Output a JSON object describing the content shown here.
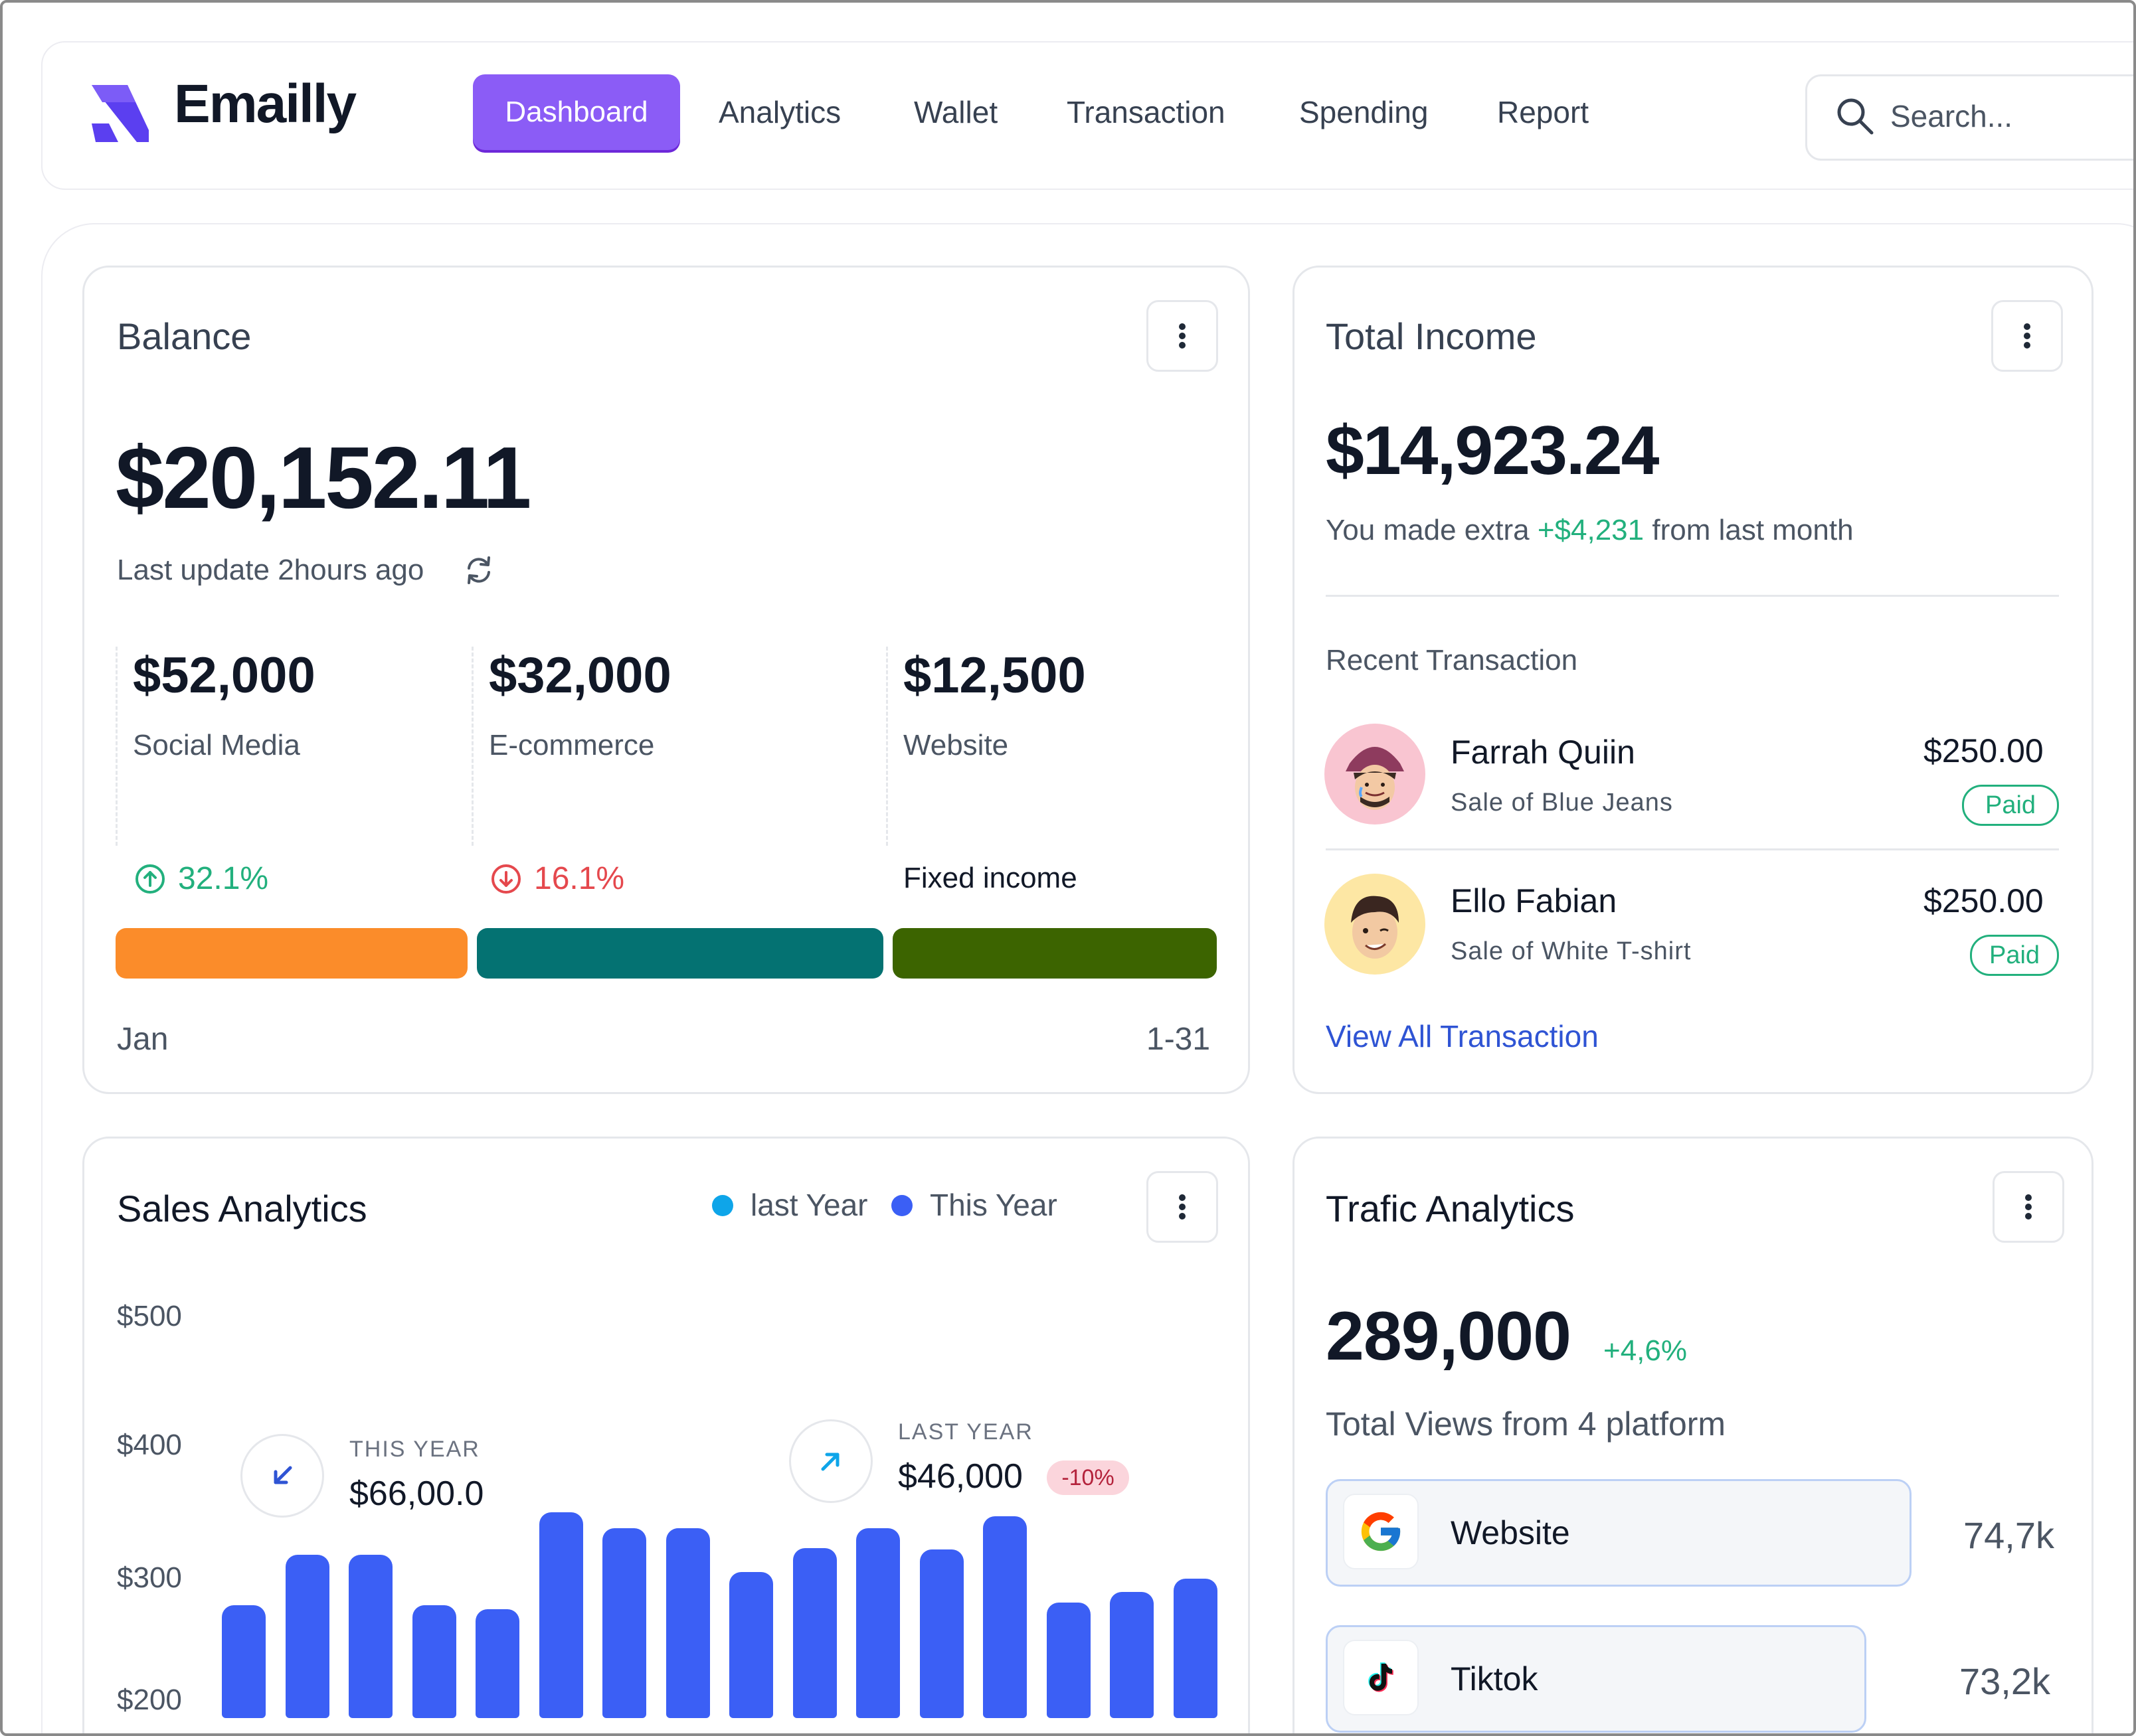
{
  "app": {
    "name": "Emailly"
  },
  "nav": {
    "items": [
      {
        "label": "Dashboard",
        "active": true
      },
      {
        "label": "Analytics"
      },
      {
        "label": "Wallet"
      },
      {
        "label": "Transaction"
      },
      {
        "label": "Spending"
      },
      {
        "label": "Report"
      }
    ],
    "search_placeholder": "Search..."
  },
  "balance": {
    "title": "Balance",
    "amount": "$20,152.11",
    "last_update": "Last update 2hours ago",
    "segments": [
      {
        "amount": "$52,000",
        "label": "Social Media",
        "change": "32.1%",
        "direction": "up",
        "color": "#fb8c2a"
      },
      {
        "amount": "$32,000",
        "label": "E-commerce",
        "change": "16.1%",
        "direction": "down",
        "color": "#047272"
      },
      {
        "amount": "$12,500",
        "label": "Website",
        "note": "Fixed income",
        "color": "#3c6400"
      }
    ],
    "month": "Jan",
    "range": "1-31"
  },
  "income": {
    "title": "Total Income",
    "amount": "$14,923.24",
    "extra_prefix": "You made extra",
    "extra_value": "+$4,231",
    "extra_suffix": "from last month",
    "recent_label": "Recent Transaction",
    "transactions": [
      {
        "name": "Farrah Quiin",
        "desc": "Sale of Blue Jeans",
        "amount": "$250.00",
        "status": "Paid"
      },
      {
        "name": "Ello Fabian",
        "desc": "Sale of White T-shirt",
        "amount": "$250.00",
        "status": "Paid"
      }
    ],
    "view_all": "View All Transaction"
  },
  "sales": {
    "title": "Sales Analytics",
    "legend": [
      {
        "label": "last Year",
        "color": "#0ea5e9"
      },
      {
        "label": "This Year",
        "color": "#3b5ff5"
      }
    ],
    "this_year_label": "THIS YEAR",
    "this_year_value": "$66,00.0",
    "last_year_label": "LAST YEAR",
    "last_year_value": "$46,000",
    "last_year_badge": "-10%"
  },
  "chart_data": {
    "type": "bar",
    "title": "Sales Analytics",
    "y_ticks": [
      "$500",
      "$400",
      "$300",
      "$200"
    ],
    "ylim": [
      170,
      500
    ],
    "values": [
      255,
      293,
      293,
      255,
      252,
      325,
      313,
      313,
      280,
      298,
      313,
      297,
      322,
      257,
      265,
      275
    ],
    "bar_color": "#3b5ff5",
    "grid": false
  },
  "traffic": {
    "title": "Trafic Analytics",
    "total": "289,000",
    "growth": "+4,6%",
    "subtitle": "Total Views from 4 platform",
    "platforms": [
      {
        "name": "Website",
        "value": "74,7k",
        "icon": "google-icon",
        "share": 0.747
      },
      {
        "name": "Tiktok",
        "value": "73,2k",
        "icon": "tiktok-icon",
        "share": 0.732
      }
    ]
  }
}
